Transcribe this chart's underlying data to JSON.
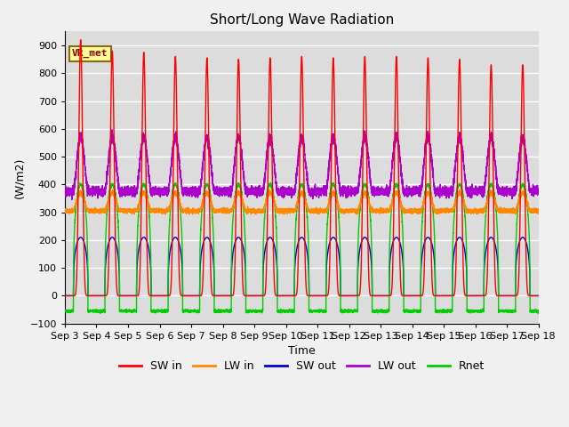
{
  "title": "Short/Long Wave Radiation",
  "ylabel": "(W/m2)",
  "xlabel": "Time",
  "ylim": [
    -100,
    950
  ],
  "yticks": [
    -100,
    0,
    100,
    200,
    300,
    400,
    500,
    600,
    700,
    800,
    900
  ],
  "n_days": 15,
  "annotation_text": "VR_met",
  "background_color": "#dcdcdc",
  "fig_background": "#f0f0f0",
  "legend_entries": [
    "SW in",
    "LW in",
    "SW out",
    "LW out",
    "Rnet"
  ],
  "legend_colors": [
    "#ff0000",
    "#ff8800",
    "#0000cc",
    "#aa00cc",
    "#00cc00"
  ],
  "line_colors": {
    "SW_in": "#ff0000",
    "LW_in": "#ff8800",
    "SW_out": "#0000cc",
    "LW_out": "#aa00cc",
    "Rnet": "#00cc00"
  },
  "xtick_labels": [
    "Sep 3",
    "Sep 4",
    "Sep 5",
    "Sep 6",
    "Sep 7",
    "Sep 8",
    "Sep 9",
    "Sep 10",
    "Sep 11",
    "Sep 12",
    "Sep 13",
    "Sep 14",
    "Sep 15",
    "Sep 16",
    "Sep 17",
    "Sep 18"
  ],
  "sw_in_peaks": [
    920,
    880,
    875,
    860,
    855,
    850,
    855,
    860,
    855,
    860,
    860,
    855,
    850,
    830,
    830
  ],
  "lw_in_nighttime": 305,
  "lw_in_daytime_peak": 370,
  "lw_out_nighttime": 375,
  "lw_out_daytime_peak": 570,
  "sw_out_daytime": 210,
  "rnet_daytime": 400,
  "rnet_nighttime": -55,
  "sunrise": 0.27,
  "sunset": 0.73,
  "sw_sharp_power": 6.0,
  "lw_power": 1.5
}
